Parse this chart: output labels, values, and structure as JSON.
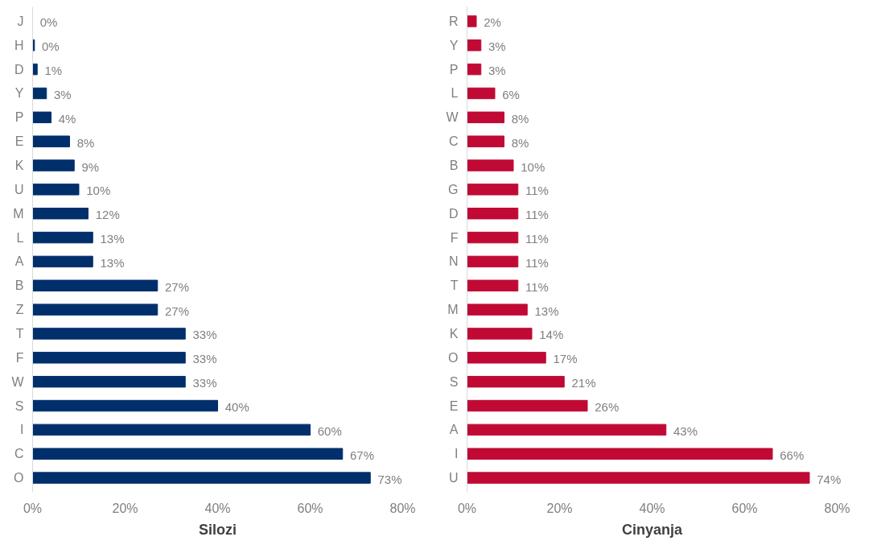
{
  "chart_data": [
    {
      "type": "bar",
      "orientation": "horizontal",
      "xlabel": "Silozi",
      "categories": [
        "J",
        "H",
        "D",
        "Y",
        "P",
        "E",
        "K",
        "U",
        "M",
        "L",
        "A",
        "B",
        "Z",
        "T",
        "F",
        "W",
        "S",
        "I",
        "C",
        "O"
      ],
      "values": [
        0,
        0.4,
        1,
        3,
        4,
        8,
        9,
        10,
        12,
        13,
        13,
        27,
        27,
        33,
        33,
        33,
        40,
        60,
        67,
        73
      ],
      "value_labels": [
        "0%",
        "0%",
        "1%",
        "3%",
        "4%",
        "8%",
        "9%",
        "10%",
        "12%",
        "13%",
        "13%",
        "27%",
        "27%",
        "33%",
        "33%",
        "33%",
        "40%",
        "60%",
        "67%",
        "73%"
      ],
      "color": "#002f6c",
      "xlim": [
        0,
        80
      ],
      "xticks": [
        {
          "value": 0,
          "label": "0%"
        },
        {
          "value": 20,
          "label": "20%"
        },
        {
          "value": 40,
          "label": "40%"
        },
        {
          "value": 60,
          "label": "60%"
        },
        {
          "value": 80,
          "label": "80%"
        }
      ],
      "grid": false
    },
    {
      "type": "bar",
      "orientation": "horizontal",
      "xlabel": "Cinyanja",
      "categories": [
        "R",
        "Y",
        "P",
        "L",
        "W",
        "C",
        "B",
        "G",
        "D",
        "F",
        "N",
        "T",
        "M",
        "K",
        "O",
        "S",
        "E",
        "A",
        "I",
        "U"
      ],
      "values": [
        2,
        3,
        3,
        6,
        8,
        8,
        10,
        11,
        11,
        11,
        11,
        11,
        13,
        14,
        17,
        21,
        26,
        43,
        66,
        74
      ],
      "value_labels": [
        "2%",
        "3%",
        "3%",
        "6%",
        "8%",
        "8%",
        "10%",
        "11%",
        "11%",
        "11%",
        "11%",
        "11%",
        "13%",
        "14%",
        "17%",
        "21%",
        "26%",
        "43%",
        "66%",
        "74%"
      ],
      "color": "#c00a35",
      "xlim": [
        0,
        80
      ],
      "xticks": [
        {
          "value": 0,
          "label": "0%"
        },
        {
          "value": 20,
          "label": "20%"
        },
        {
          "value": 40,
          "label": "40%"
        },
        {
          "value": 60,
          "label": "60%"
        },
        {
          "value": 80,
          "label": "80%"
        }
      ],
      "grid": false
    }
  ]
}
